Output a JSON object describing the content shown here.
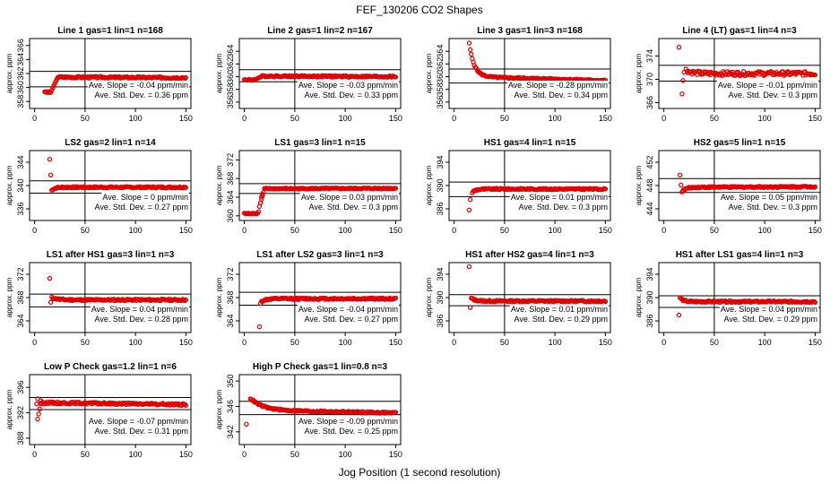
{
  "figure": {
    "title": "FEF_130206  CO2 Shapes",
    "xlabel": "Jog Position (1 second resolution)"
  },
  "chart_data": [
    {
      "type": "scatter",
      "title": "Line 1 gas=1 lin=1 n=168",
      "ylabel": "approx. ppm",
      "xlim": [
        -5,
        155
      ],
      "ylim": [
        357,
        367
      ],
      "yticks": [
        358,
        360,
        362,
        364,
        366
      ],
      "xticks": [
        0,
        50,
        100,
        150
      ],
      "hlines": [
        360.1,
        362.3
      ],
      "vline": 50,
      "slope_label": "Ave. Slope = -0.04  ppm/min",
      "sd_label": "Ave. Std. Dev. = 0.36  ppm",
      "profile": {
        "start": 10,
        "end": 150,
        "plateau": 361.5,
        "noise": 0.12,
        "rise_from": 359.3,
        "rise_until": 23,
        "rise_start": 16,
        "drift": -0.1
      }
    },
    {
      "type": "scatter",
      "title": "Line 2 gas=1 lin=2 n=167",
      "ylabel": "approx. ppm",
      "xlim": [
        -5,
        155
      ],
      "ylim": [
        355,
        366
      ],
      "yticks": [
        356,
        358,
        360,
        362,
        364
      ],
      "xticks": [
        0,
        50,
        100,
        150
      ],
      "hlines": [
        359.2,
        361.1
      ],
      "vline": 50,
      "slope_label": "Ave. Slope = -0.03  ppm/min",
      "sd_label": "Ave. Std. Dev. = 0.33  ppm",
      "profile": {
        "start": 0,
        "end": 150,
        "plateau": 360.1,
        "noise": 0.12,
        "rise_from": 359.5,
        "rise_until": 18,
        "rise_start": 10,
        "drift": -0.1
      }
    },
    {
      "type": "scatter",
      "title": "Line 3 gas=1 lin=3 n=168",
      "ylabel": "approx. ppm",
      "xlim": [
        -5,
        155
      ],
      "ylim": [
        355,
        366
      ],
      "yticks": [
        356,
        358,
        360,
        362,
        364
      ],
      "xticks": [
        0,
        50,
        100,
        150
      ],
      "hlines": [
        359.0,
        361.2
      ],
      "vline": 50,
      "slope_label": "Ave. Slope = -0.28  ppm/min",
      "sd_label": "Ave. Std. Dev. = 0.34  ppm",
      "profile": {
        "start": 15,
        "end": 150,
        "plateau": 360.0,
        "noise": 0.1,
        "decay_from": 365.2,
        "decay_tau": 5,
        "drift": -0.6
      }
    },
    {
      "type": "scatter",
      "title": "Line 4 (LT) gas=1 lin=4 n=3",
      "ylabel": "approx. ppm",
      "xlim": [
        -5,
        155
      ],
      "ylim": [
        365,
        377
      ],
      "yticks": [
        366,
        370,
        374
      ],
      "xticks": [
        0,
        50,
        100,
        150
      ],
      "hlines": [
        369.7,
        372.4
      ],
      "vline": 50,
      "slope_label": "Ave. Slope = -0.01  ppm/min",
      "sd_label": "Ave. Std. Dev. = 0.3  ppm",
      "outliers": [
        [
          15,
          375.5
        ],
        [
          18,
          367.5
        ],
        [
          19,
          369.8
        ],
        [
          20,
          371.2
        ]
      ],
      "profile": {
        "start": 22,
        "end": 150,
        "plateau": 371.0,
        "noise": 0.35,
        "decay_from": 371.6,
        "decay_tau": 6,
        "drift": 0
      }
    },
    {
      "type": "scatter",
      "title": "LS2 gas=2 lin=1 n=14",
      "ylabel": "approx. ppm",
      "xlim": [
        -5,
        155
      ],
      "ylim": [
        334,
        346
      ],
      "yticks": [
        336,
        340,
        344
      ],
      "xticks": [
        0,
        50,
        100,
        150
      ],
      "hlines": [
        338.7,
        340.8
      ],
      "vline": 50,
      "slope_label": "Ave. Slope = 0  ppm/min",
      "sd_label": "Ave. Std. Dev. = 0.27  ppm",
      "outliers": [
        [
          15,
          344.5
        ],
        [
          16,
          341.8
        ]
      ],
      "profile": {
        "start": 17,
        "end": 150,
        "plateau": 339.7,
        "noise": 0.12,
        "decay_from": 339.2,
        "decay_tau": 3,
        "drift": 0
      }
    },
    {
      "type": "scatter",
      "title": "LS1 gas=3 lin=1 n=15",
      "ylabel": "approx. ppm",
      "xlim": [
        -5,
        155
      ],
      "ylim": [
        359,
        374
      ],
      "yticks": [
        360,
        364,
        368,
        372
      ],
      "xticks": [
        0,
        50,
        100,
        150
      ],
      "hlines": [
        364.8,
        366.9
      ],
      "vline": 50,
      "slope_label": "Ave. Slope = 0.03  ppm/min",
      "sd_label": "Ave. Std. Dev. = 0.3  ppm",
      "outliers": [
        [
          16,
          362.8
        ],
        [
          17,
          364.0
        ],
        [
          18,
          364.6
        ]
      ],
      "profile": {
        "start": 0,
        "end": 150,
        "plateau": 365.8,
        "noise": 0.12,
        "rise_from": 360.5,
        "rise_until": 20,
        "rise_start": 13,
        "drift": 0.1,
        "step": true
      }
    },
    {
      "type": "scatter",
      "title": "HS1 gas=4 lin=1 n=15",
      "ylabel": "approx. ppm",
      "xlim": [
        -5,
        155
      ],
      "ylim": [
        384,
        396
      ],
      "yticks": [
        386,
        390,
        394
      ],
      "xticks": [
        0,
        50,
        100,
        150
      ],
      "hlines": [
        388.1,
        390.6
      ],
      "vline": 50,
      "slope_label": "Ave. Slope = 0.01  ppm/min",
      "sd_label": "Ave. Std. Dev. = 0.3  ppm",
      "outliers": [
        [
          15,
          385.8
        ],
        [
          16,
          387.6
        ]
      ],
      "profile": {
        "start": 18,
        "end": 150,
        "plateau": 389.4,
        "noise": 0.12,
        "decay_from": 388.8,
        "decay_tau": 3,
        "drift": 0
      }
    },
    {
      "type": "scatter",
      "title": "HS2 gas=5 lin=1 n=15",
      "ylabel": "approx. ppm",
      "xlim": [
        -5,
        155
      ],
      "ylim": [
        442,
        454
      ],
      "yticks": [
        444,
        448,
        452
      ],
      "xticks": [
        0,
        50,
        100,
        150
      ],
      "hlines": [
        446.8,
        449.2
      ],
      "vline": 50,
      "slope_label": "Ave. Slope = 0.05  ppm/min",
      "sd_label": "Ave. Std. Dev. = 0.3  ppm",
      "outliers": [
        [
          16,
          449.8
        ],
        [
          17,
          448.1
        ]
      ],
      "profile": {
        "start": 18,
        "end": 150,
        "plateau": 447.7,
        "noise": 0.12,
        "decay_from": 447.0,
        "decay_tau": 4,
        "drift": 0.1
      }
    },
    {
      "type": "scatter",
      "title": "LS1 after HS1 gas=3 lin=1 n=3",
      "ylabel": "approx. ppm",
      "xlim": [
        -5,
        155
      ],
      "ylim": [
        362,
        374
      ],
      "yticks": [
        364,
        368,
        372
      ],
      "xticks": [
        0,
        50,
        100,
        150
      ],
      "hlines": [
        366.4,
        368.6
      ],
      "vline": 50,
      "slope_label": "Ave. Slope = 0.04  ppm/min",
      "sd_label": "Ave. Std. Dev. = 0.28  ppm",
      "outliers": [
        [
          15,
          371.3
        ],
        [
          16,
          367.2
        ]
      ],
      "profile": {
        "start": 17,
        "end": 150,
        "plateau": 367.6,
        "noise": 0.14,
        "decay_from": 368.0,
        "decay_tau": 6,
        "drift": 0
      }
    },
    {
      "type": "scatter",
      "title": "LS1 after LS2 gas=3 lin=1 n=3",
      "ylabel": "approx. ppm",
      "xlim": [
        -5,
        155
      ],
      "ylim": [
        362,
        374
      ],
      "yticks": [
        364,
        368,
        372
      ],
      "xticks": [
        0,
        50,
        100,
        150
      ],
      "hlines": [
        366.7,
        368.9
      ],
      "vline": 50,
      "slope_label": "Ave. Slope = -0.04  ppm/min",
      "sd_label": "Ave. Std. Dev. = 0.27  ppm",
      "outliers": [
        [
          15,
          363.0
        ],
        [
          16,
          367.0
        ]
      ],
      "profile": {
        "start": 17,
        "end": 150,
        "plateau": 367.8,
        "noise": 0.14,
        "decay_from": 367.3,
        "decay_tau": 4,
        "drift": 0
      }
    },
    {
      "type": "scatter",
      "title": "HS1 after HS2 gas=4 lin=1 n=3",
      "ylabel": "approx. ppm",
      "xlim": [
        -5,
        155
      ],
      "ylim": [
        384,
        396
      ],
      "yticks": [
        386,
        390,
        394
      ],
      "xticks": [
        0,
        50,
        100,
        150
      ],
      "hlines": [
        388.6,
        390.5
      ],
      "vline": 50,
      "slope_label": "Ave. Slope = 0.01  ppm/min",
      "sd_label": "Ave. Std. Dev. = 0.29  ppm",
      "outliers": [
        [
          15,
          395.3
        ],
        [
          16,
          388.3
        ]
      ],
      "profile": {
        "start": 17,
        "end": 150,
        "plateau": 389.4,
        "noise": 0.13,
        "decay_from": 389.9,
        "decay_tau": 4,
        "drift": 0
      }
    },
    {
      "type": "scatter",
      "title": "HS1 after LS1 gas=4 lin=1 n=3",
      "ylabel": "approx. ppm",
      "xlim": [
        -5,
        155
      ],
      "ylim": [
        384,
        396
      ],
      "yticks": [
        386,
        390,
        394
      ],
      "xticks": [
        0,
        50,
        100,
        150
      ],
      "hlines": [
        388.3,
        390.3
      ],
      "vline": 50,
      "slope_label": "Ave. Slope = 0.04  ppm/min",
      "sd_label": "Ave. Std. Dev. = 0.29  ppm",
      "outliers": [
        [
          15,
          387.0
        ]
      ],
      "profile": {
        "start": 16,
        "end": 150,
        "plateau": 389.3,
        "noise": 0.13,
        "decay_from": 390.0,
        "decay_tau": 3,
        "drift": 0
      }
    },
    {
      "type": "scatter",
      "title": "Low P Check gas=1.2 lin=1 n=6",
      "ylabel": "approx. ppm",
      "xlim": [
        -5,
        155
      ],
      "ylim": [
        387,
        398
      ],
      "yticks": [
        388,
        392,
        396
      ],
      "xticks": [
        0,
        50,
        100,
        150
      ],
      "hlines": [
        392.5,
        394.4
      ],
      "vline": 50,
      "slope_label": "Ave. Slope = -0.07  ppm/min",
      "sd_label": "Ave. Std. Dev. = 0.31  ppm",
      "outliers": [
        [
          3,
          391.0
        ],
        [
          4,
          391.8
        ],
        [
          2,
          393.4
        ],
        [
          5,
          392.6
        ],
        [
          3,
          394.2
        ],
        [
          6,
          393.9
        ]
      ],
      "profile": {
        "start": 6,
        "end": 150,
        "plateau": 393.6,
        "noise": 0.15,
        "decay_from": 393.5,
        "decay_tau": 3,
        "drift": -0.3
      }
    },
    {
      "type": "scatter",
      "title": "High P Check gas=1 lin=0.8 n=3",
      "ylabel": "approx. ppm",
      "xlim": [
        -5,
        155
      ],
      "ylim": [
        340,
        351
      ],
      "yticks": [
        342,
        346,
        350
      ],
      "xticks": [
        0,
        50,
        100,
        150
      ],
      "hlines": [
        344.7,
        346.8
      ],
      "vline": 50,
      "slope_label": "Ave. Slope = -0.09  ppm/min",
      "sd_label": "Ave. Std. Dev. = 0.25  ppm",
      "outliers": [
        [
          2,
          343.2
        ]
      ],
      "profile": {
        "start": 6,
        "end": 150,
        "plateau": 345.4,
        "noise": 0.12,
        "decay_from": 347.3,
        "decay_tau": 12,
        "drift": -0.4
      }
    }
  ]
}
